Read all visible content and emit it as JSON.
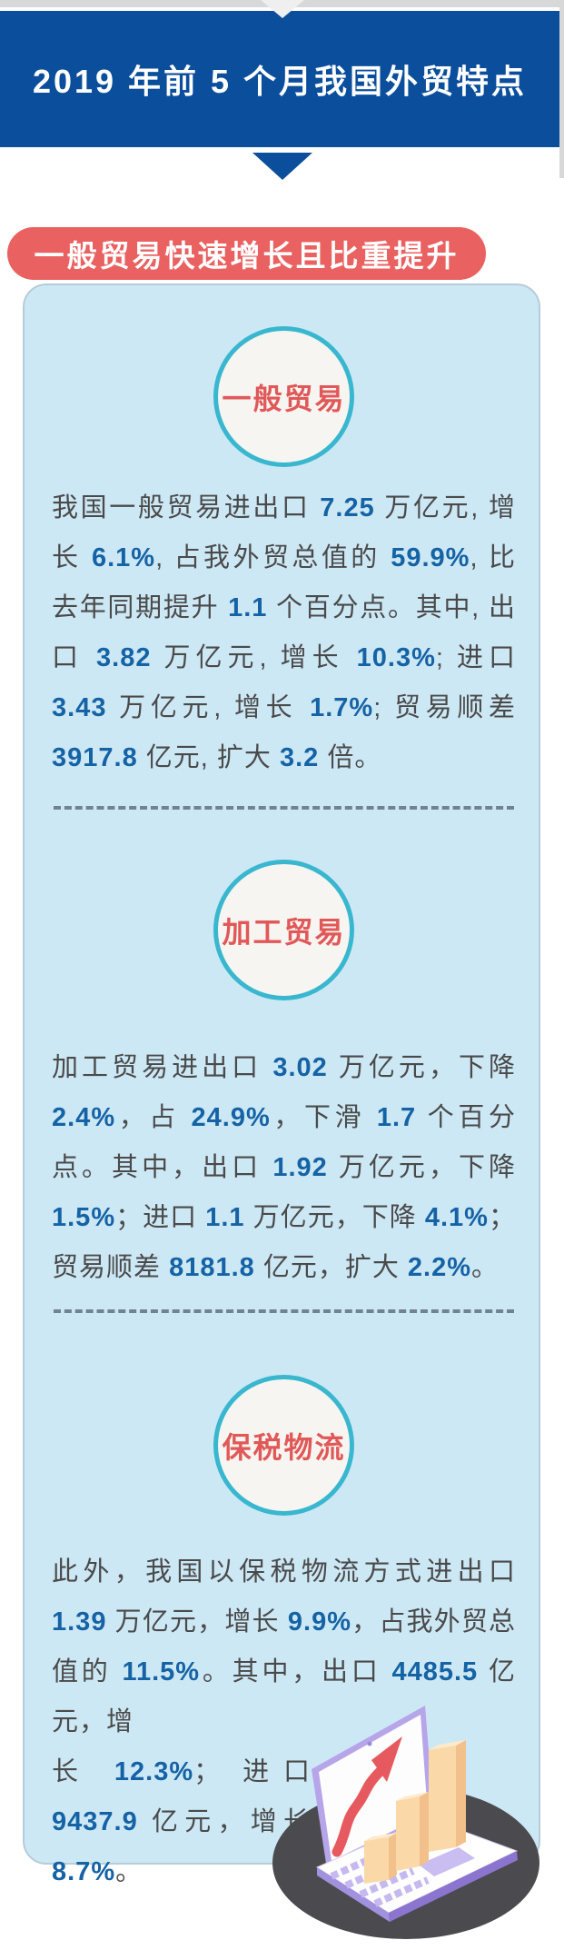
{
  "header": {
    "title": "2019 年前 5 个月我国外贸特点"
  },
  "badge": {
    "label": "一般贸易快速增长且比重提升"
  },
  "sections": [
    {
      "id": "general-trade",
      "circle_label": "一般贸易",
      "runs": [
        {
          "t": "我国一般贸易进出口 "
        },
        {
          "t": "7.25",
          "em": true
        },
        {
          "t": " 万亿元, 增长 "
        },
        {
          "t": "6.1%",
          "em": true
        },
        {
          "t": ", 占我外贸总值的 "
        },
        {
          "t": "59.9%",
          "em": true
        },
        {
          "t": ", 比去年同期提升 "
        },
        {
          "t": "1.1",
          "em": true
        },
        {
          "t": " 个百分点。其中, 出口 "
        },
        {
          "t": "3.82",
          "em": true
        },
        {
          "t": " 万亿元, 增长 "
        },
        {
          "t": "10.3%",
          "em": true
        },
        {
          "t": "; 进口 "
        },
        {
          "t": "3.43",
          "em": true
        },
        {
          "t": " 万亿元, 增长 "
        },
        {
          "t": "1.7%",
          "em": true
        },
        {
          "t": "; 贸易顺差 "
        },
        {
          "t": "3917.8",
          "em": true
        },
        {
          "t": " 亿元, 扩大 "
        },
        {
          "t": "3.2",
          "em": true
        },
        {
          "t": " 倍。"
        }
      ]
    },
    {
      "id": "processing-trade",
      "circle_label": "加工贸易",
      "runs": [
        {
          "t": "加工贸易进出口 "
        },
        {
          "t": "3.02",
          "em": true
        },
        {
          "t": " 万亿元，下降 "
        },
        {
          "t": "2.4%",
          "em": true
        },
        {
          "t": "，占 "
        },
        {
          "t": "24.9%",
          "em": true
        },
        {
          "t": "，下滑 "
        },
        {
          "t": "1.7",
          "em": true
        },
        {
          "t": " 个百分点。其中，出口 "
        },
        {
          "t": "1.92",
          "em": true
        },
        {
          "t": " 万亿元，下降 "
        },
        {
          "t": "1.5%",
          "em": true
        },
        {
          "t": "；进口 "
        },
        {
          "t": "1.1",
          "em": true
        },
        {
          "t": " 万亿元，下降 "
        },
        {
          "t": "4.1%",
          "em": true
        },
        {
          "t": "；贸易顺差 "
        },
        {
          "t": "8181.8",
          "em": true
        },
        {
          "t": " 亿元，扩大 "
        },
        {
          "t": "2.2%",
          "em": true
        },
        {
          "t": "。"
        }
      ]
    },
    {
      "id": "bonded-logistics",
      "circle_label": "保税物流",
      "runs": [
        {
          "t": "此外，我国以保税物流方式进出口 "
        },
        {
          "t": "1.39",
          "em": true
        },
        {
          "t": " 万亿元，增长 "
        },
        {
          "t": "9.9%",
          "em": true
        },
        {
          "t": "，占我外贸总值的 "
        },
        {
          "t": "11.5%",
          "em": true
        },
        {
          "t": "。其中，出口 "
        },
        {
          "t": "4485.5",
          "em": true
        },
        {
          "t": " 亿元，增"
        }
      ],
      "runs_wrap": [
        {
          "t": "长 "
        },
        {
          "t": "12.3%",
          "em": true
        },
        {
          "t": "； 进口 "
        },
        {
          "t": "9437.9",
          "em": true
        },
        {
          "t": " 亿元，增长 "
        },
        {
          "t": "8.7%",
          "em": true
        },
        {
          "t": "。"
        }
      ]
    }
  ],
  "colors": {
    "banner_blue": "#0b4e9b",
    "badge_red": "#e96161",
    "card_bg": "#cde8f5",
    "circle_border_teal": "#39b7cf",
    "circle_text_red": "#e05858",
    "body_text": "#4a4a4a",
    "number_blue": "#1563a5",
    "divider_gray": "#6f8390",
    "top_strip_gray": "#d8d8d8"
  },
  "illustration": {
    "name": "laptop-growth-chart",
    "platform_color": "#4b4a4e",
    "laptop_frame_color": "#b7a5e9",
    "laptop_base_color": "#8b75cf",
    "key_color": "#c6b9f0",
    "screen_color": "#fdfdfd",
    "arrow_color": "#e6595e",
    "bar_front_color": "#fbd8a7",
    "bar_side_color": "#f2c08a",
    "bar_top_color": "#fdeacb"
  }
}
